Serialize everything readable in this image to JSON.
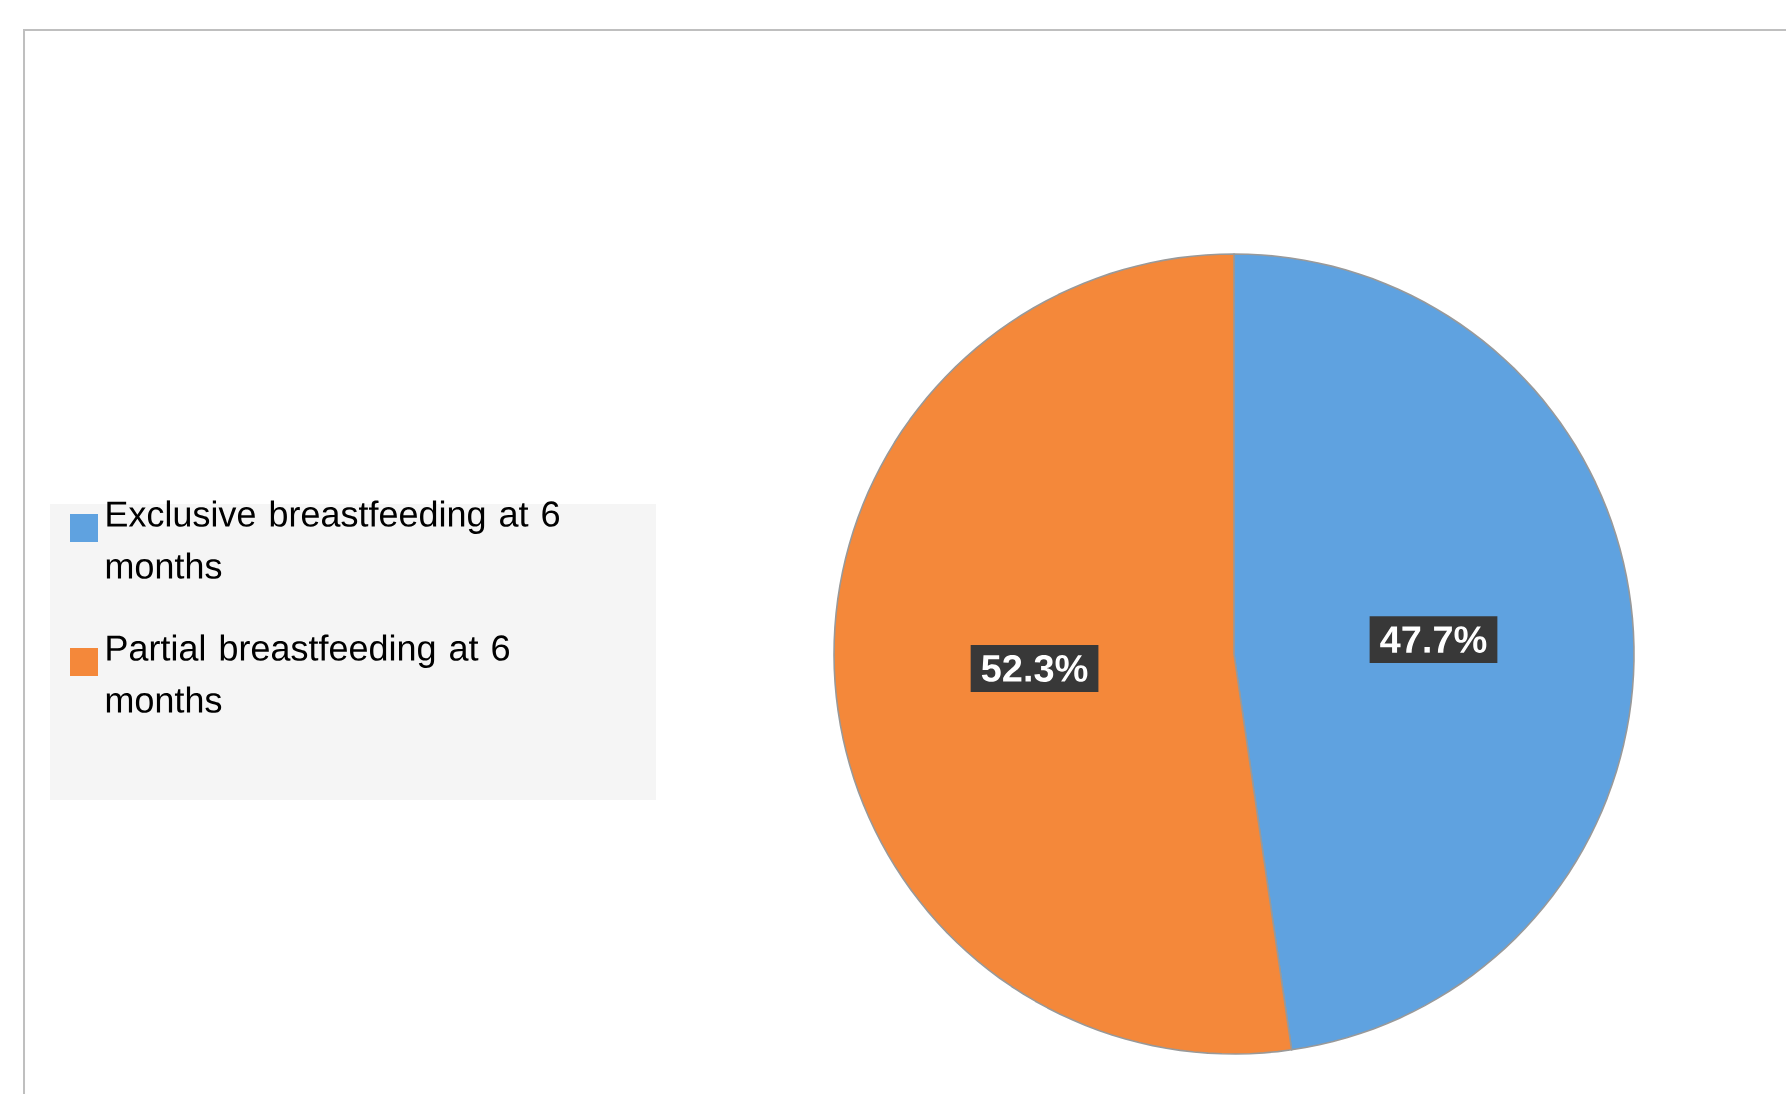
{
  "chart_data": {
    "type": "pie",
    "categories": [
      "Exclusive breastfeeding at 6 months",
      "Partial breastfeeding at 6 months"
    ],
    "values": [
      47.7,
      52.3
    ],
    "colors": [
      "#5fa2e0",
      "#f4883a"
    ],
    "value_labels": [
      "47.7%",
      "52.3%"
    ],
    "legend": "left"
  }
}
